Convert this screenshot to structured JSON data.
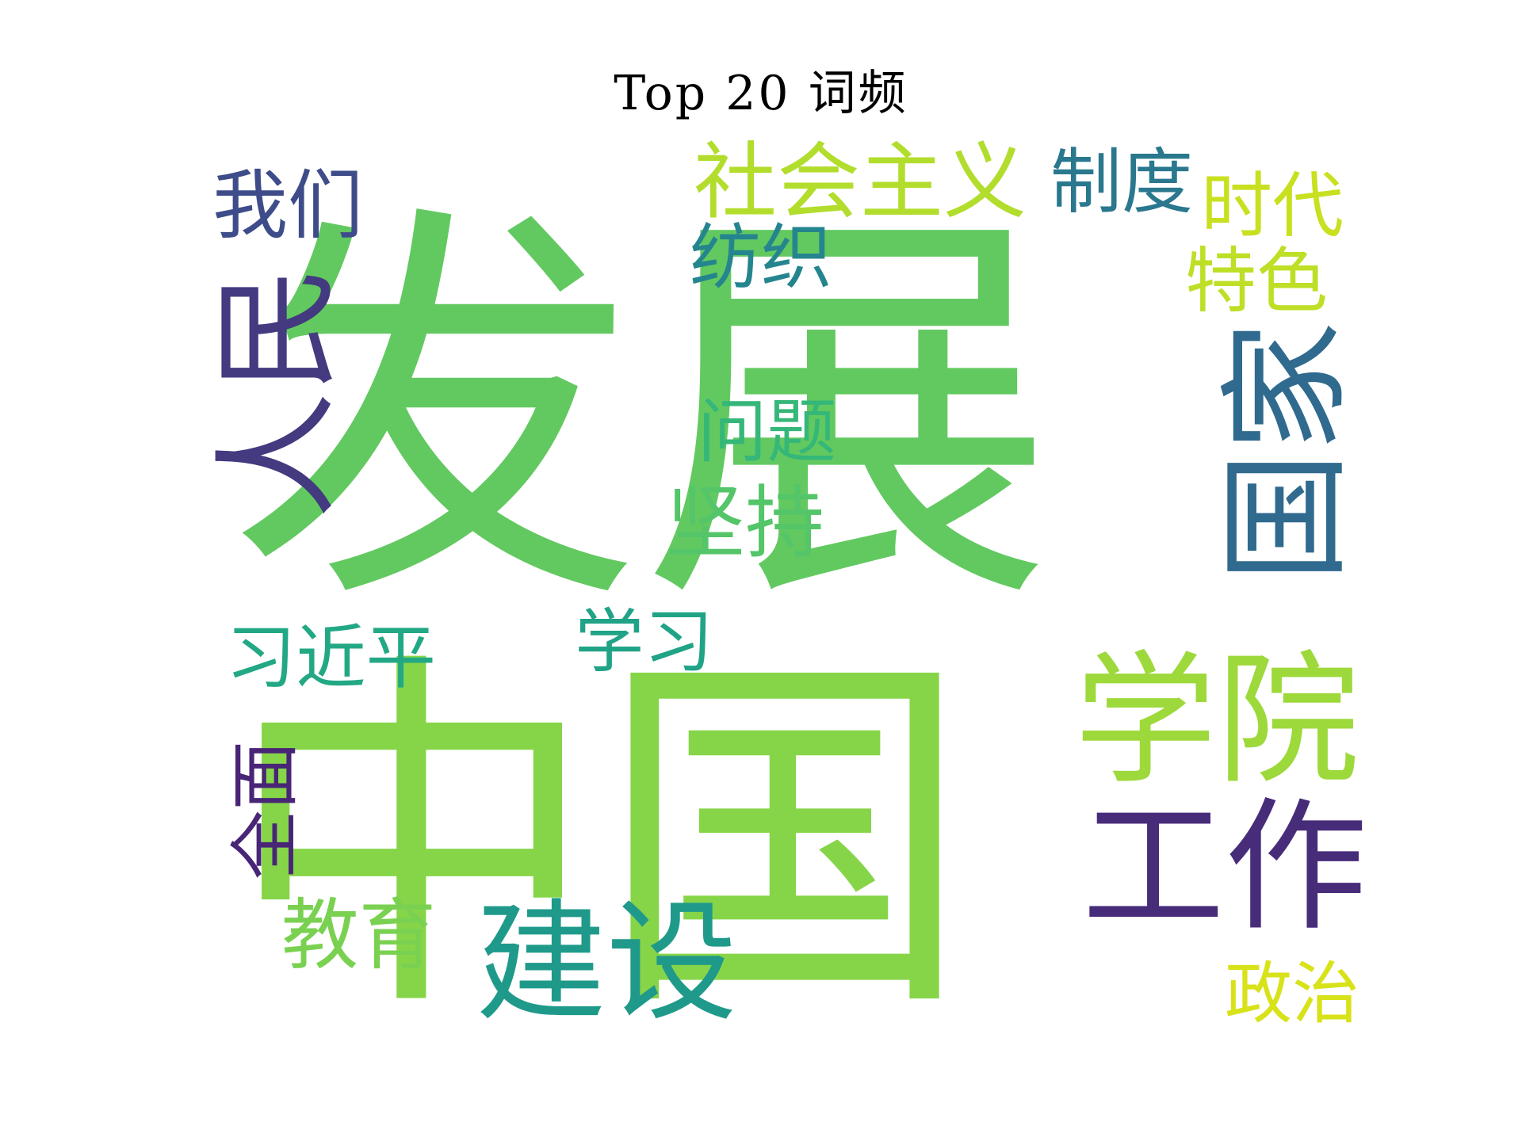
{
  "chart_data": {
    "type": "wordcloud",
    "title": "Top 20 词频",
    "words": [
      {
        "text": "发展",
        "rank": 1,
        "color": "#62c960"
      },
      {
        "text": "中国",
        "rank": 2,
        "color": "#86d549"
      },
      {
        "text": "人民",
        "rank": 3,
        "color": "#433a80"
      },
      {
        "text": "国家",
        "rank": 4,
        "color": "#306a8e"
      },
      {
        "text": "工作",
        "rank": 5,
        "color": "#472c7a"
      },
      {
        "text": "学院",
        "rank": 6,
        "color": "#9dd93b"
      },
      {
        "text": "建设",
        "rank": 7,
        "color": "#1f9a8a"
      },
      {
        "text": "社会主义",
        "rank": 8,
        "color": "#b2dd2d"
      },
      {
        "text": "制度",
        "rank": 9,
        "color": "#2a788e"
      },
      {
        "text": "我们",
        "rank": 10,
        "color": "#3e4c8a"
      },
      {
        "text": "时代",
        "rank": 11,
        "color": "#c8e020"
      },
      {
        "text": "纺织",
        "rank": 12,
        "color": "#25858e"
      },
      {
        "text": "特色",
        "rank": 13,
        "color": "#bddf26"
      },
      {
        "text": "问题",
        "rank": 14,
        "color": "#35b779"
      },
      {
        "text": "坚持",
        "rank": 15,
        "color": "#54c568"
      },
      {
        "text": "习近平",
        "rank": 16,
        "color": "#22a884"
      },
      {
        "text": "学习",
        "rank": 17,
        "color": "#20a386"
      },
      {
        "text": "全面",
        "rank": 18,
        "color": "#482576"
      },
      {
        "text": "教育",
        "rank": 19,
        "color": "#7ad151"
      },
      {
        "text": "政治",
        "rank": 20,
        "color": "#d8e219"
      }
    ]
  }
}
